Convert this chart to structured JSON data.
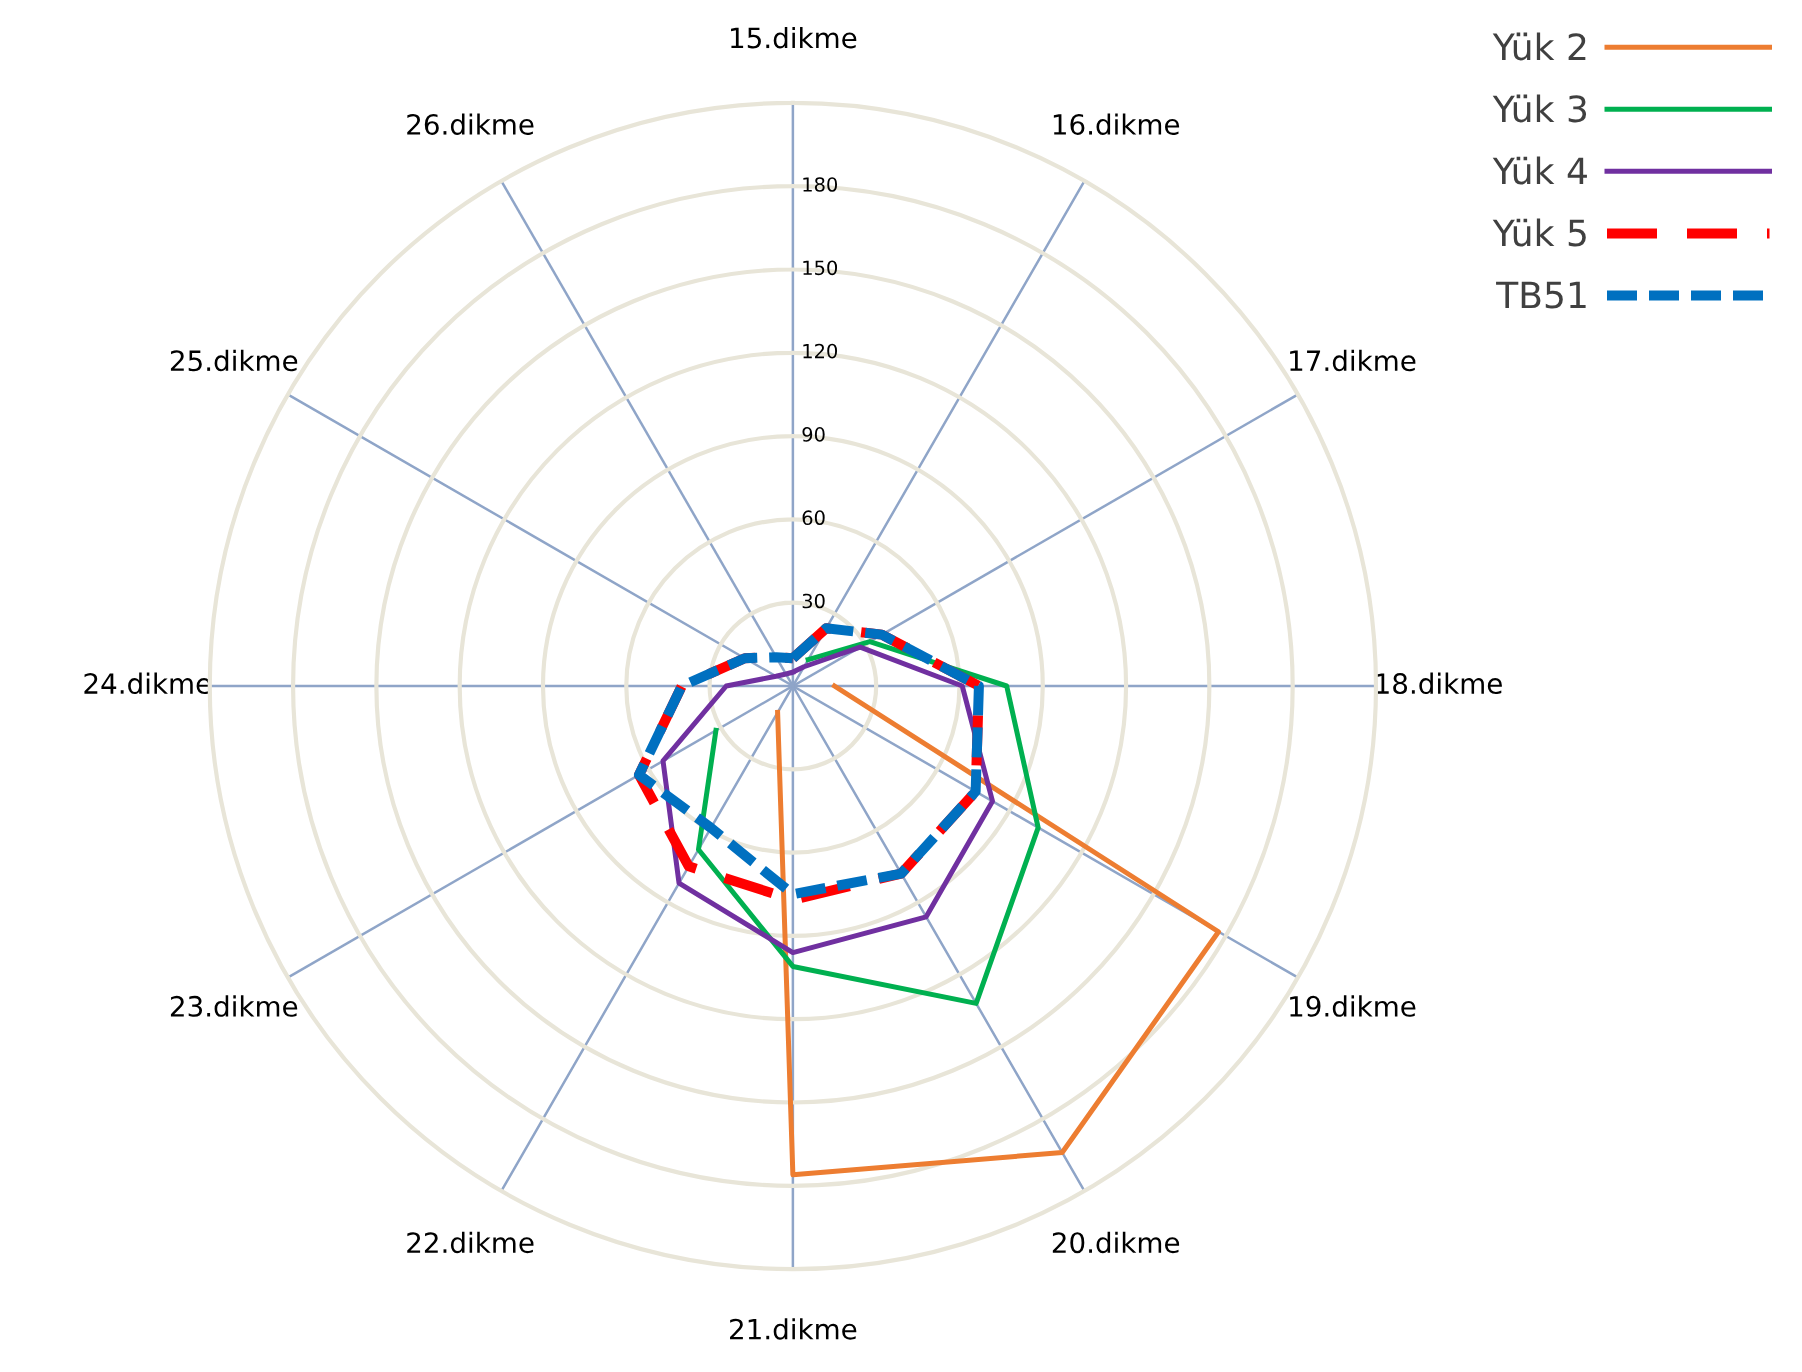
{
  "chart_data": {
    "type": "radar",
    "categories": [
      "15.dikme",
      "16.dikme",
      "17.dikme",
      "18.dikme",
      "19.dikme",
      "20.dikme",
      "21.dikme",
      "22.dikme",
      "23.dikme",
      "24.dikme",
      "25.dikme",
      "26.dikme"
    ],
    "ylim": [
      0,
      210
    ],
    "yticks": [
      30,
      60,
      90,
      120,
      150,
      180
    ],
    "grid": true,
    "legend": "top right",
    "marker": "none",
    "series": [
      {
        "name": "Yük 2",
        "color": "#ed7d31",
        "line_style": "solid",
        "values": [
          null,
          null,
          null,
          15,
          177,
          194,
          176,
          11,
          null,
          null,
          null,
          null
        ]
      },
      {
        "name": "Yük 3",
        "color": "#00b050",
        "line_style": "solid",
        "values": [
          null,
          11,
          32,
          77,
          102,
          132,
          101,
          68,
          32,
          null,
          null,
          null
        ]
      },
      {
        "name": "Yük 4",
        "color": "#7030a0",
        "line_style": "solid",
        "values": [
          5,
          8,
          28,
          61,
          83,
          96,
          96,
          82,
          54,
          24,
          7,
          5
        ]
      },
      {
        "name": "Yük 5",
        "color": "#ff0000",
        "line_style": "dashed",
        "values": [
          10,
          24,
          37,
          67,
          76,
          78,
          77,
          75,
          64,
          40,
          20,
          12
        ]
      },
      {
        "name": "TB51",
        "color": "#0070c0",
        "line_style": "dotted",
        "values": [
          10,
          24,
          37,
          67,
          76,
          78,
          75,
          59,
          64,
          40,
          20,
          12
        ]
      }
    ]
  }
}
